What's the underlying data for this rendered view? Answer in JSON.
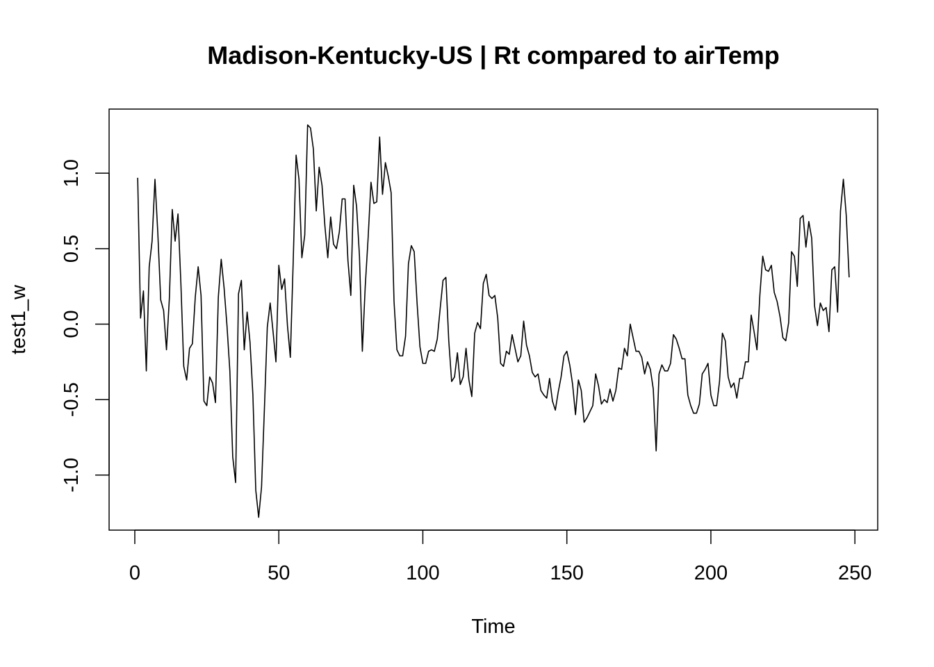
{
  "chart_data": {
    "type": "line",
    "title": "Madison-Kentucky-US | Rt compared to airTemp",
    "xlabel": "Time",
    "ylabel": "test1_w",
    "xlim": [
      -8.92,
      257.92
    ],
    "ylim": [
      -1.365,
      1.425
    ],
    "xticks": [
      0,
      50,
      100,
      150,
      200,
      250
    ],
    "yticks": [
      -1.0,
      -0.5,
      0.0,
      0.5,
      1.0
    ],
    "ytick_labels": [
      "-1.0",
      "-0.5",
      "0.0",
      "0.5",
      "1.0"
    ],
    "grid": false,
    "line_color": "#000000",
    "series": [
      {
        "x": [
          1,
          2,
          3,
          4,
          5,
          6,
          7,
          8,
          9,
          10,
          11,
          12,
          13,
          14,
          15,
          16,
          17,
          18,
          19,
          20,
          21,
          22,
          23,
          24,
          25,
          26,
          27,
          28,
          29,
          30,
          31,
          32,
          33,
          34,
          35,
          36,
          37,
          38,
          39,
          40,
          41,
          42,
          43,
          44,
          45,
          46,
          47,
          48,
          49,
          50,
          51,
          52,
          53,
          54,
          55,
          56,
          57,
          58,
          59,
          60,
          61,
          62,
          63,
          64,
          65,
          66,
          67,
          68,
          69,
          70,
          71,
          72,
          73,
          74,
          75,
          76,
          77,
          78,
          79,
          80,
          81,
          82,
          83,
          84,
          85,
          86,
          87,
          88,
          89,
          90,
          91,
          92,
          93,
          94,
          95,
          96,
          97,
          98,
          99,
          100,
          101,
          102,
          103,
          104,
          105,
          106,
          107,
          108,
          109,
          110,
          111,
          112,
          113,
          114,
          115,
          116,
          117,
          118,
          119,
          120,
          121,
          122,
          123,
          124,
          125,
          126,
          127,
          128,
          129,
          130,
          131,
          132,
          133,
          134,
          135,
          136,
          137,
          138,
          139,
          140,
          141,
          142,
          143,
          144,
          145,
          146,
          147,
          148,
          149,
          150,
          151,
          152,
          153,
          154,
          155,
          156,
          157,
          158,
          159,
          160,
          161,
          162,
          163,
          164,
          165,
          166,
          167,
          168,
          169,
          170,
          171,
          172,
          173,
          174,
          175,
          176,
          177,
          178,
          179,
          180,
          181,
          182,
          183,
          184,
          185,
          186,
          187,
          188,
          189,
          190,
          191,
          192,
          193,
          194,
          195,
          196,
          197,
          198,
          199,
          200,
          201,
          202,
          203,
          204,
          205,
          206,
          207,
          208,
          209,
          210,
          211,
          212,
          213,
          214,
          215,
          216,
          217,
          218,
          219,
          220,
          221,
          222,
          223,
          224,
          225,
          226,
          227,
          228,
          229,
          230,
          231,
          232,
          233,
          234,
          235,
          236,
          237,
          238,
          239,
          240,
          241,
          242,
          243,
          244,
          245,
          246,
          247,
          248
        ],
        "values": [
          0.97,
          0.04,
          0.22,
          -0.31,
          0.38,
          0.55,
          0.96,
          0.6,
          0.16,
          0.09,
          -0.17,
          0.17,
          0.76,
          0.55,
          0.73,
          0.27,
          -0.28,
          -0.37,
          -0.16,
          -0.13,
          0.18,
          0.38,
          0.19,
          -0.51,
          -0.54,
          -0.35,
          -0.39,
          -0.52,
          0.18,
          0.43,
          0.24,
          -0.01,
          -0.31,
          -0.88,
          -1.05,
          0.2,
          0.29,
          -0.17,
          0.08,
          -0.12,
          -0.47,
          -1.1,
          -1.28,
          -1.08,
          -0.56,
          -0.02,
          0.14,
          -0.05,
          -0.25,
          0.39,
          0.23,
          0.3,
          -0.01,
          -0.22,
          0.42,
          1.12,
          0.96,
          0.44,
          0.59,
          1.32,
          1.3,
          1.16,
          0.75,
          1.04,
          0.92,
          0.65,
          0.44,
          0.71,
          0.53,
          0.5,
          0.61,
          0.83,
          0.83,
          0.42,
          0.19,
          0.92,
          0.78,
          0.45,
          -0.18,
          0.25,
          0.57,
          0.94,
          0.8,
          0.81,
          1.24,
          0.86,
          1.07,
          0.98,
          0.87,
          0.15,
          -0.17,
          -0.21,
          -0.21,
          -0.08,
          0.4,
          0.52,
          0.48,
          0.14,
          -0.15,
          -0.26,
          -0.26,
          -0.18,
          -0.17,
          -0.18,
          -0.1,
          0.1,
          0.29,
          0.31,
          -0.11,
          -0.38,
          -0.35,
          -0.19,
          -0.4,
          -0.35,
          -0.16,
          -0.37,
          -0.48,
          -0.06,
          0.01,
          -0.03,
          0.27,
          0.33,
          0.19,
          0.17,
          0.19,
          0.04,
          -0.26,
          -0.28,
          -0.18,
          -0.2,
          -0.07,
          -0.16,
          -0.25,
          -0.21,
          0.02,
          -0.14,
          -0.21,
          -0.32,
          -0.35,
          -0.33,
          -0.44,
          -0.47,
          -0.49,
          -0.36,
          -0.51,
          -0.57,
          -0.45,
          -0.35,
          -0.21,
          -0.18,
          -0.27,
          -0.4,
          -0.6,
          -0.37,
          -0.44,
          -0.65,
          -0.62,
          -0.58,
          -0.54,
          -0.33,
          -0.41,
          -0.53,
          -0.5,
          -0.52,
          -0.43,
          -0.51,
          -0.44,
          -0.29,
          -0.3,
          -0.16,
          -0.21,
          0.0,
          -0.09,
          -0.18,
          -0.18,
          -0.22,
          -0.33,
          -0.25,
          -0.3,
          -0.43,
          -0.84,
          -0.33,
          -0.27,
          -0.31,
          -0.31,
          -0.26,
          -0.07,
          -0.1,
          -0.16,
          -0.23,
          -0.23,
          -0.47,
          -0.54,
          -0.59,
          -0.59,
          -0.53,
          -0.33,
          -0.3,
          -0.26,
          -0.47,
          -0.54,
          -0.54,
          -0.38,
          -0.06,
          -0.11,
          -0.35,
          -0.42,
          -0.39,
          -0.49,
          -0.36,
          -0.36,
          -0.25,
          -0.25,
          0.06,
          -0.05,
          -0.17,
          0.19,
          0.45,
          0.36,
          0.35,
          0.39,
          0.21,
          0.15,
          0.05,
          -0.09,
          -0.11,
          0.01,
          0.48,
          0.45,
          0.25,
          0.7,
          0.72,
          0.51,
          0.68,
          0.57,
          0.12,
          -0.01,
          0.14,
          0.09,
          0.11,
          -0.05,
          0.36,
          0.38,
          0.08,
          0.75,
          0.96,
          0.72,
          0.31
        ]
      }
    ]
  }
}
